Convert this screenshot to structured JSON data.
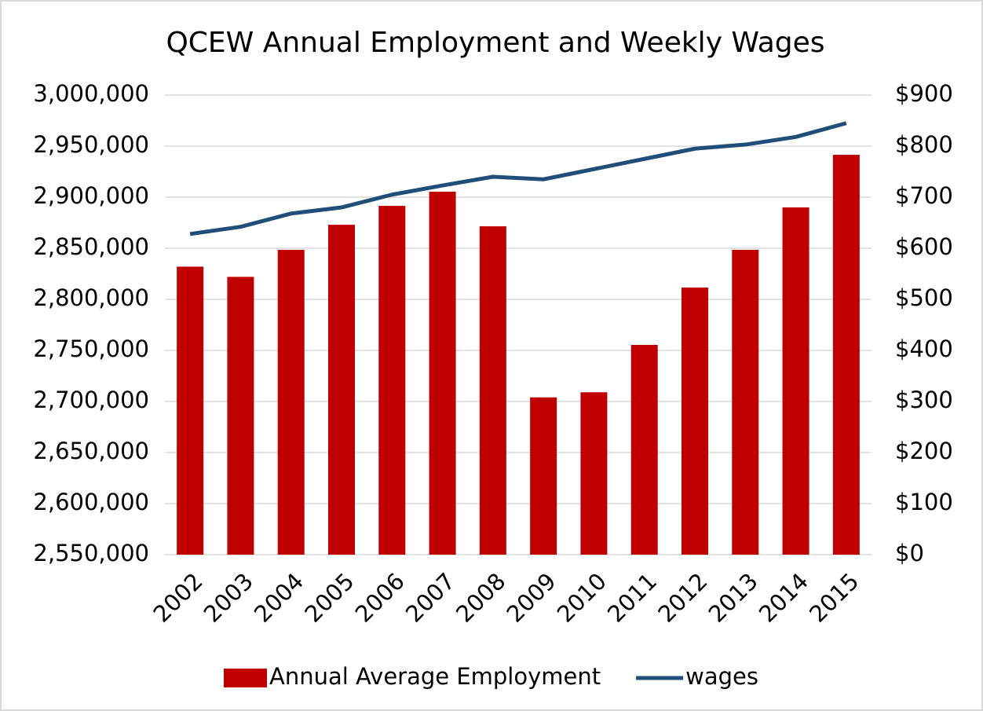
{
  "chart_data": {
    "type": "bar_line",
    "title": "QCEW Annual Employment and Weekly Wages",
    "categories": [
      "2002",
      "2003",
      "2004",
      "2005",
      "2006",
      "2007",
      "2008",
      "2009",
      "2010",
      "2011",
      "2012",
      "2013",
      "2014",
      "2015"
    ],
    "series": [
      {
        "name": "Annual Average Employment",
        "color": "#c00000",
        "type": "bar",
        "values": [
          2832000,
          2822000,
          2848500,
          2873000,
          2891500,
          2905400,
          2871500,
          2704000,
          2709000,
          2755400,
          2811500,
          2848500,
          2890000,
          2941500
        ]
      },
      {
        "name": "wages",
        "color": "#1f4e79",
        "type": "line",
        "axis": "y2",
        "values": [
          628,
          642,
          668,
          680,
          705,
          723,
          740,
          735,
          755,
          775,
          795,
          803,
          818,
          845
        ]
      }
    ],
    "ylim": [
      2550000,
      3000000
    ],
    "yticks": [
      {
        "value": 2550000,
        "label": "2,550,000"
      },
      {
        "value": 2600000,
        "label": "2,600,000"
      },
      {
        "value": 2650000,
        "label": "2,650,000"
      },
      {
        "value": 2700000,
        "label": "2,700,000"
      },
      {
        "value": 2750000,
        "label": "2,750,000"
      },
      {
        "value": 2800000,
        "label": "2,800,000"
      },
      {
        "value": 2850000,
        "label": "2,850,000"
      },
      {
        "value": 2900000,
        "label": "2,900,000"
      },
      {
        "value": 2950000,
        "label": "2,950,000"
      },
      {
        "value": 3000000,
        "label": "3,000,000"
      }
    ],
    "y2lim": [
      0,
      900
    ],
    "y2ticks": [
      {
        "value": 0,
        "label": "$0"
      },
      {
        "value": 100,
        "label": "$100"
      },
      {
        "value": 200,
        "label": "$200"
      },
      {
        "value": 300,
        "label": "$300"
      },
      {
        "value": 400,
        "label": "$400"
      },
      {
        "value": 500,
        "label": "$500"
      },
      {
        "value": 600,
        "label": "$600"
      },
      {
        "value": 700,
        "label": "$700"
      },
      {
        "value": 800,
        "label": "$800"
      },
      {
        "value": 900,
        "label": "$900"
      }
    ],
    "grid": true,
    "legend": "bottom"
  }
}
